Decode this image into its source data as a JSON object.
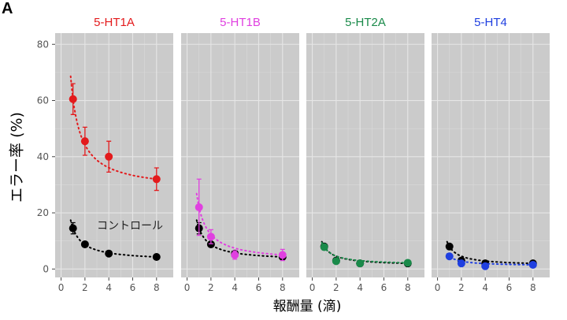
{
  "panel_label": "A",
  "chart_data": {
    "type": "scatter",
    "xlabel": "報酬量 (滴)",
    "ylabel": "エラー率 (%)",
    "ylim": [
      -3,
      84
    ],
    "xlim": [
      -0.5,
      9.4
    ],
    "xticks": [
      0,
      2,
      4,
      6,
      8
    ],
    "yticks": [
      0,
      20,
      40,
      60,
      80
    ],
    "grid": true,
    "annotation": "コントロール",
    "control_color": "#000000",
    "x": [
      1,
      2,
      4,
      8
    ],
    "panels": [
      {
        "title": "5-HT1A",
        "color": "#e31a1c",
        "drug": {
          "values": [
            60.5,
            45.5,
            40,
            32
          ],
          "errors": [
            5.5,
            5,
            5.5,
            4
          ]
        },
        "control": {
          "values": [
            14.5,
            8.8,
            5.5,
            4.3
          ],
          "errors": [
            2,
            0.5,
            0.5,
            0.5
          ]
        }
      },
      {
        "title": "5-HT1B",
        "color": "#e040e0",
        "drug": {
          "values": [
            22,
            11.5,
            5,
            5
          ],
          "errors": [
            10,
            2.5,
            1.5,
            2
          ]
        },
        "control": {
          "values": [
            14.5,
            8.8,
            5.5,
            4.3
          ],
          "errors": [
            2,
            0.5,
            0.5,
            0.5
          ]
        }
      },
      {
        "title": "5-HT2A",
        "color": "#1a8a4a",
        "drug": {
          "values": [
            7.8,
            2.8,
            2,
            2.2
          ],
          "errors": [
            1,
            0.5,
            0.4,
            0.4
          ]
        },
        "control": {
          "values": [
            8,
            3,
            2,
            2
          ],
          "errors": [
            0.5,
            0.4,
            0.3,
            0.3
          ]
        }
      },
      {
        "title": "5-HT4",
        "color": "#1f3fe0",
        "drug": {
          "values": [
            4.5,
            2,
            1,
            1.5
          ],
          "errors": [
            0.6,
            0.4,
            0.3,
            0.3
          ]
        },
        "control": {
          "values": [
            8,
            3,
            2,
            2
          ],
          "errors": [
            0.5,
            0.4,
            0.3,
            0.3
          ]
        }
      }
    ]
  }
}
